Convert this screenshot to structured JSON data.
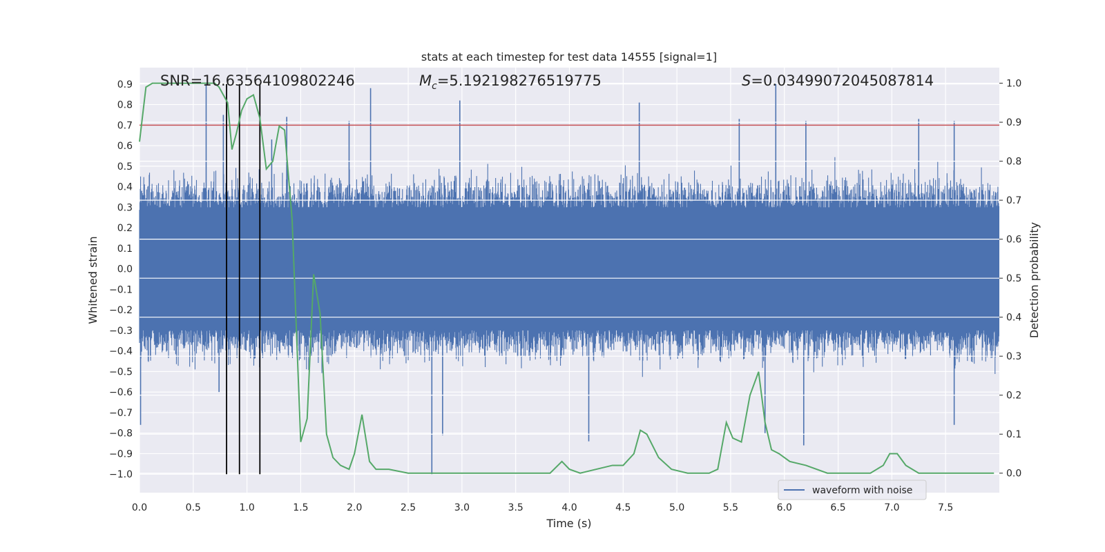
{
  "chart_data": {
    "type": "line",
    "title": "stats at each timestep for test data 14555 [signal=1]",
    "xlabel": "Time (s)",
    "ylabel_left": "Whitened strain",
    "ylabel_right": "Detection probability",
    "xlim": [
      0.0,
      8.0
    ],
    "ylim_left": [
      -1.09,
      0.98
    ],
    "ylim_right": [
      -0.05,
      1.04
    ],
    "xticks": [
      "0.0",
      "0.5",
      "1.0",
      "1.5",
      "2.0",
      "2.5",
      "3.0",
      "3.5",
      "4.0",
      "4.5",
      "5.0",
      "5.5",
      "6.0",
      "6.5",
      "7.0",
      "7.5"
    ],
    "xtick_values": [
      0.0,
      0.5,
      1.0,
      1.5,
      2.0,
      2.5,
      3.0,
      3.5,
      4.0,
      4.5,
      5.0,
      5.5,
      6.0,
      6.5,
      7.0,
      7.5
    ],
    "yticks_left": [
      "0.9",
      "0.8",
      "0.7",
      "0.6",
      "0.5",
      "0.4",
      "0.3",
      "0.2",
      "0.1",
      "0.0",
      "−0.1",
      "−0.2",
      "−0.3",
      "−0.4",
      "−0.5",
      "−0.6",
      "−0.7",
      "−0.8",
      "−0.9",
      "−1.0"
    ],
    "ytick_values_left": [
      0.9,
      0.8,
      0.7,
      0.6,
      0.5,
      0.4,
      0.3,
      0.2,
      0.1,
      0.0,
      -0.1,
      -0.2,
      -0.3,
      -0.4,
      -0.5,
      -0.6,
      -0.7,
      -0.8,
      -0.9,
      -1.0
    ],
    "yticks_right": [
      "1.0",
      "0.9",
      "0.8",
      "0.7",
      "0.6",
      "0.5",
      "0.4",
      "0.3",
      "0.2",
      "0.1",
      "0.0"
    ],
    "ytick_values_right": [
      1.0,
      0.9,
      0.8,
      0.7,
      0.6,
      0.5,
      0.4,
      0.3,
      0.2,
      0.1,
      0.0
    ],
    "annotations": {
      "snr": "SNR=16.63564109802246",
      "mc_symbol": "M",
      "mc_sub": "c",
      "mc_value": "=5.192198276519775",
      "s_symbol": "S",
      "s_value": "=0.03499072045087814"
    },
    "threshold": {
      "value": 0.7,
      "axis": "left",
      "color": "#c44e52"
    },
    "vertical_lines": {
      "x": [
        0.81,
        0.93,
        1.12
      ],
      "y_range": [
        -1.0,
        0.9
      ],
      "color": "#000000"
    },
    "waveform": {
      "name": "waveform with noise",
      "color": "#4c72b0",
      "duration_s": 8.0,
      "core_band": [
        -0.3,
        0.3
      ],
      "spikes_up": [
        {
          "x": 0.02,
          "y": 0.38
        },
        {
          "x": 0.62,
          "y": 0.9
        },
        {
          "x": 0.78,
          "y": 0.75
        },
        {
          "x": 1.23,
          "y": 0.63
        },
        {
          "x": 1.37,
          "y": 0.74
        },
        {
          "x": 1.95,
          "y": 0.72
        },
        {
          "x": 2.15,
          "y": 0.88
        },
        {
          "x": 2.98,
          "y": 0.82
        },
        {
          "x": 4.65,
          "y": 0.81
        },
        {
          "x": 5.58,
          "y": 0.73
        },
        {
          "x": 5.92,
          "y": 0.9
        },
        {
          "x": 6.2,
          "y": 0.72
        },
        {
          "x": 7.25,
          "y": 0.73
        },
        {
          "x": 7.58,
          "y": 0.72
        }
      ],
      "spikes_down": [
        {
          "x": 0.01,
          "y": -0.76
        },
        {
          "x": 0.74,
          "y": -0.6
        },
        {
          "x": 2.72,
          "y": -1.0
        },
        {
          "x": 2.82,
          "y": -0.81
        },
        {
          "x": 4.18,
          "y": -0.84
        },
        {
          "x": 5.82,
          "y": -0.8
        },
        {
          "x": 6.18,
          "y": -0.86
        },
        {
          "x": 7.58,
          "y": -0.76
        }
      ]
    },
    "probability": {
      "name": "detection probability",
      "color": "#55a868",
      "x": [
        0.0,
        0.06,
        0.12,
        0.3,
        0.5,
        0.7,
        0.74,
        0.82,
        0.86,
        0.9,
        0.95,
        1.0,
        1.06,
        1.12,
        1.18,
        1.24,
        1.3,
        1.35,
        1.42,
        1.5,
        1.56,
        1.62,
        1.68,
        1.74,
        1.8,
        1.87,
        1.95,
        2.0,
        2.07,
        2.14,
        2.2,
        2.25,
        2.32,
        2.5,
        3.0,
        3.5,
        3.82,
        3.93,
        4.0,
        4.1,
        4.25,
        4.4,
        4.5,
        4.6,
        4.66,
        4.72,
        4.83,
        4.95,
        5.1,
        5.3,
        5.38,
        5.46,
        5.52,
        5.6,
        5.68,
        5.76,
        5.82,
        5.88,
        5.95,
        6.05,
        6.2,
        6.4,
        6.6,
        6.8,
        6.92,
        6.98,
        7.05,
        7.13,
        7.25,
        7.5,
        7.95
      ],
      "y": [
        0.85,
        0.99,
        1.0,
        1.0,
        1.0,
        1.0,
        0.99,
        0.95,
        0.83,
        0.87,
        0.93,
        0.96,
        0.97,
        0.91,
        0.78,
        0.8,
        0.89,
        0.88,
        0.65,
        0.08,
        0.14,
        0.51,
        0.41,
        0.1,
        0.04,
        0.02,
        0.01,
        0.05,
        0.15,
        0.03,
        0.01,
        0.01,
        0.01,
        0.0,
        0.0,
        0.0,
        0.0,
        0.03,
        0.01,
        0.0,
        0.01,
        0.02,
        0.02,
        0.05,
        0.11,
        0.1,
        0.04,
        0.01,
        0.0,
        0.0,
        0.01,
        0.13,
        0.09,
        0.08,
        0.2,
        0.26,
        0.13,
        0.06,
        0.05,
        0.03,
        0.02,
        0.0,
        0.0,
        0.0,
        0.02,
        0.05,
        0.05,
        0.02,
        0.0,
        0.0,
        0.0
      ]
    },
    "legend": {
      "entries": [
        "waveform with noise"
      ],
      "placement": "lower-right"
    }
  }
}
